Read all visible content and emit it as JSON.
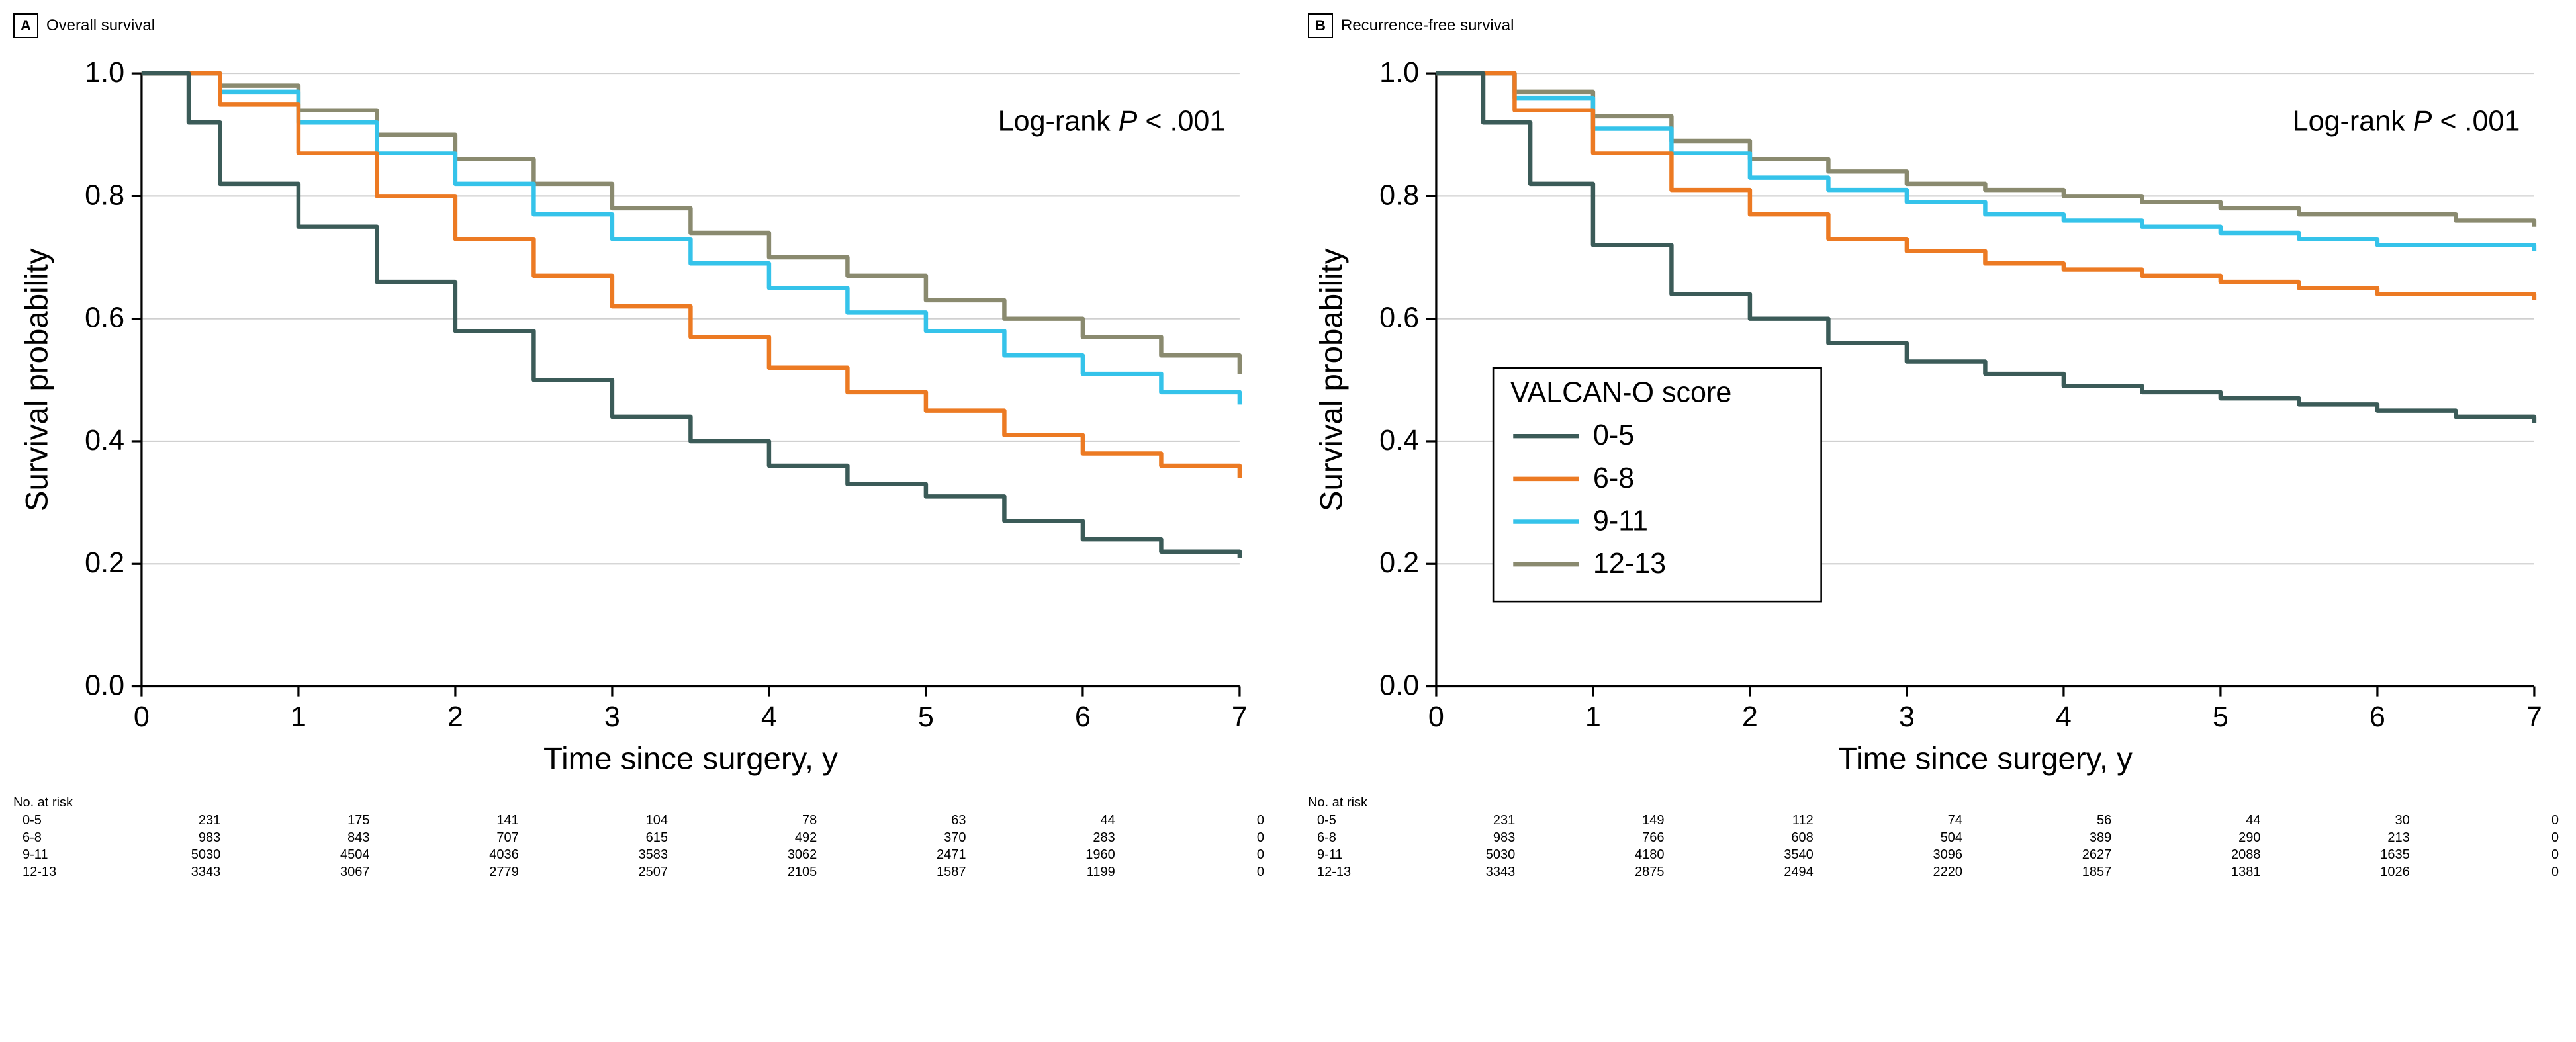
{
  "colors": {
    "s1": "#3b5b58",
    "s2": "#ec7a23",
    "s3": "#35c3ea",
    "s4": "#8a8a6f",
    "grid": "#d0d0d0",
    "axis": "#000000",
    "text": "#000000",
    "bg": "#ffffff"
  },
  "typography": {
    "axis_label_fontsize": 22,
    "tick_fontsize": 20,
    "legend_fontsize": 20,
    "annot_fontsize": 20,
    "line_width": 3
  },
  "axes": {
    "xlim": [
      0,
      7
    ],
    "ylim": [
      0,
      1.0
    ],
    "xticks": [
      0,
      1,
      2,
      3,
      4,
      5,
      6,
      7
    ],
    "yticks": [
      0,
      0.2,
      0.4,
      0.6,
      0.8,
      1.0
    ],
    "xlabel": "Time since surgery, y",
    "ylabel": "Survival probability"
  },
  "legend": {
    "title": "VALCAN-O score",
    "items": [
      "0-5",
      "6-8",
      "9-11",
      "12-13"
    ]
  },
  "panelA": {
    "letter": "A",
    "title": "Overall survival",
    "annotation": "Log-rank P < .001",
    "series": {
      "s1": [
        [
          0,
          1.0
        ],
        [
          0.3,
          0.92
        ],
        [
          0.5,
          0.82
        ],
        [
          1,
          0.75
        ],
        [
          1.5,
          0.66
        ],
        [
          2,
          0.58
        ],
        [
          2.5,
          0.5
        ],
        [
          3,
          0.44
        ],
        [
          3.5,
          0.4
        ],
        [
          4,
          0.36
        ],
        [
          4.5,
          0.33
        ],
        [
          5,
          0.31
        ],
        [
          5.5,
          0.27
        ],
        [
          6,
          0.24
        ],
        [
          6.5,
          0.22
        ],
        [
          7,
          0.21
        ]
      ],
      "s2": [
        [
          0,
          1.0
        ],
        [
          0.5,
          0.95
        ],
        [
          1,
          0.87
        ],
        [
          1.5,
          0.8
        ],
        [
          2,
          0.73
        ],
        [
          2.5,
          0.67
        ],
        [
          3,
          0.62
        ],
        [
          3.5,
          0.57
        ],
        [
          4,
          0.52
        ],
        [
          4.5,
          0.48
        ],
        [
          5,
          0.45
        ],
        [
          5.5,
          0.41
        ],
        [
          6,
          0.38
        ],
        [
          6.5,
          0.36
        ],
        [
          7,
          0.34
        ]
      ],
      "s3": [
        [
          0,
          1.0
        ],
        [
          0.5,
          0.97
        ],
        [
          1,
          0.92
        ],
        [
          1.5,
          0.87
        ],
        [
          2,
          0.82
        ],
        [
          2.5,
          0.77
        ],
        [
          3,
          0.73
        ],
        [
          3.5,
          0.69
        ],
        [
          4,
          0.65
        ],
        [
          4.5,
          0.61
        ],
        [
          5,
          0.58
        ],
        [
          5.5,
          0.54
        ],
        [
          6,
          0.51
        ],
        [
          6.5,
          0.48
        ],
        [
          7,
          0.46
        ]
      ],
      "s4": [
        [
          0,
          1.0
        ],
        [
          0.5,
          0.98
        ],
        [
          1,
          0.94
        ],
        [
          1.5,
          0.9
        ],
        [
          2,
          0.86
        ],
        [
          2.5,
          0.82
        ],
        [
          3,
          0.78
        ],
        [
          3.5,
          0.74
        ],
        [
          4,
          0.7
        ],
        [
          4.5,
          0.67
        ],
        [
          5,
          0.63
        ],
        [
          5.5,
          0.6
        ],
        [
          6,
          0.57
        ],
        [
          6.5,
          0.54
        ],
        [
          7,
          0.51
        ]
      ]
    },
    "risk_header": "No. at risk",
    "risk": {
      "0-5": [
        231,
        175,
        141,
        104,
        78,
        63,
        44,
        0
      ],
      "6-8": [
        983,
        843,
        707,
        615,
        492,
        370,
        283,
        0
      ],
      "9-11": [
        5030,
        4504,
        4036,
        3583,
        3062,
        2471,
        1960,
        0
      ],
      "12-13": [
        3343,
        3067,
        2779,
        2507,
        2105,
        1587,
        1199,
        0
      ]
    }
  },
  "panelB": {
    "letter": "B",
    "title": "Recurrence-free survival",
    "annotation": "Log-rank P < .001",
    "series": {
      "s1": [
        [
          0,
          1.0
        ],
        [
          0.3,
          0.92
        ],
        [
          0.6,
          0.82
        ],
        [
          1,
          0.72
        ],
        [
          1.5,
          0.64
        ],
        [
          2,
          0.6
        ],
        [
          2.5,
          0.56
        ],
        [
          3,
          0.53
        ],
        [
          3.5,
          0.51
        ],
        [
          4,
          0.49
        ],
        [
          4.5,
          0.48
        ],
        [
          5,
          0.47
        ],
        [
          5.5,
          0.46
        ],
        [
          6,
          0.45
        ],
        [
          6.5,
          0.44
        ],
        [
          7,
          0.43
        ]
      ],
      "s2": [
        [
          0,
          1.0
        ],
        [
          0.5,
          0.94
        ],
        [
          1,
          0.87
        ],
        [
          1.5,
          0.81
        ],
        [
          2,
          0.77
        ],
        [
          2.5,
          0.73
        ],
        [
          3,
          0.71
        ],
        [
          3.5,
          0.69
        ],
        [
          4,
          0.68
        ],
        [
          4.5,
          0.67
        ],
        [
          5,
          0.66
        ],
        [
          5.5,
          0.65
        ],
        [
          6,
          0.64
        ],
        [
          6.5,
          0.64
        ],
        [
          7,
          0.63
        ]
      ],
      "s3": [
        [
          0,
          1.0
        ],
        [
          0.5,
          0.96
        ],
        [
          1,
          0.91
        ],
        [
          1.5,
          0.87
        ],
        [
          2,
          0.83
        ],
        [
          2.5,
          0.81
        ],
        [
          3,
          0.79
        ],
        [
          3.5,
          0.77
        ],
        [
          4,
          0.76
        ],
        [
          4.5,
          0.75
        ],
        [
          5,
          0.74
        ],
        [
          5.5,
          0.73
        ],
        [
          6,
          0.72
        ],
        [
          6.5,
          0.72
        ],
        [
          7,
          0.71
        ]
      ],
      "s4": [
        [
          0,
          1.0
        ],
        [
          0.5,
          0.97
        ],
        [
          1,
          0.93
        ],
        [
          1.5,
          0.89
        ],
        [
          2,
          0.86
        ],
        [
          2.5,
          0.84
        ],
        [
          3,
          0.82
        ],
        [
          3.5,
          0.81
        ],
        [
          4,
          0.8
        ],
        [
          4.5,
          0.79
        ],
        [
          5,
          0.78
        ],
        [
          5.5,
          0.77
        ],
        [
          6,
          0.77
        ],
        [
          6.5,
          0.76
        ],
        [
          7,
          0.75
        ]
      ]
    },
    "risk_header": "No. at risk",
    "risk": {
      "0-5": [
        231,
        149,
        112,
        74,
        56,
        44,
        30,
        0
      ],
      "6-8": [
        983,
        766,
        608,
        504,
        389,
        290,
        213,
        0
      ],
      "9-11": [
        5030,
        4180,
        3540,
        3096,
        2627,
        2088,
        1635,
        0
      ],
      "12-13": [
        3343,
        2875,
        2494,
        2220,
        1857,
        1381,
        1026,
        0
      ]
    }
  }
}
